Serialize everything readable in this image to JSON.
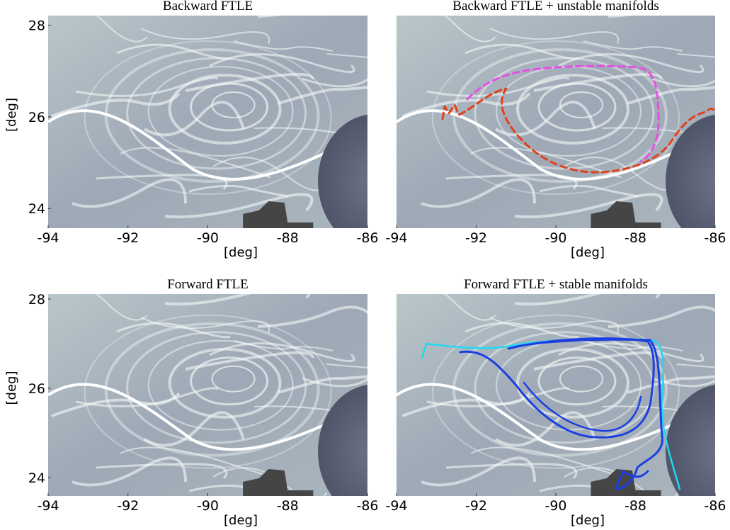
{
  "chart_data": [
    {
      "type": "image",
      "title": "Backward FTLE",
      "xlabel": "[deg]",
      "ylabel": "[deg]",
      "xlim": [
        -94,
        -86
      ],
      "ylim": [
        23.57,
        28.21
      ],
      "xticks": [
        -94,
        -92,
        -90,
        -88,
        -86
      ],
      "yticks": [
        24,
        26,
        28
      ]
    },
    {
      "type": "image",
      "title": "Backward FTLE + unstable manifolds",
      "xlabel": "[deg]",
      "xlim": [
        -94,
        -86
      ],
      "ylim": [
        23.57,
        28.21
      ],
      "xticks": [
        -94,
        -92,
        -90,
        -88,
        -86
      ]
    },
    {
      "type": "image",
      "title": "Forward  FTLE",
      "xlabel": "[deg]",
      "ylabel": "[deg]",
      "xlim": [
        -94,
        -86
      ],
      "ylim": [
        23.59,
        28.11
      ],
      "xticks": [
        -94,
        -92,
        -90,
        -88,
        -86
      ],
      "yticks": [
        24,
        26,
        28
      ]
    },
    {
      "type": "image",
      "title": "Forward FTLE + stable manifolds",
      "xlabel": "[deg]",
      "xlim": [
        -94,
        -86
      ],
      "ylim": [
        23.59,
        28.11
      ],
      "xticks": [
        -94,
        -92,
        -90,
        -88,
        -86
      ]
    }
  ]
}
